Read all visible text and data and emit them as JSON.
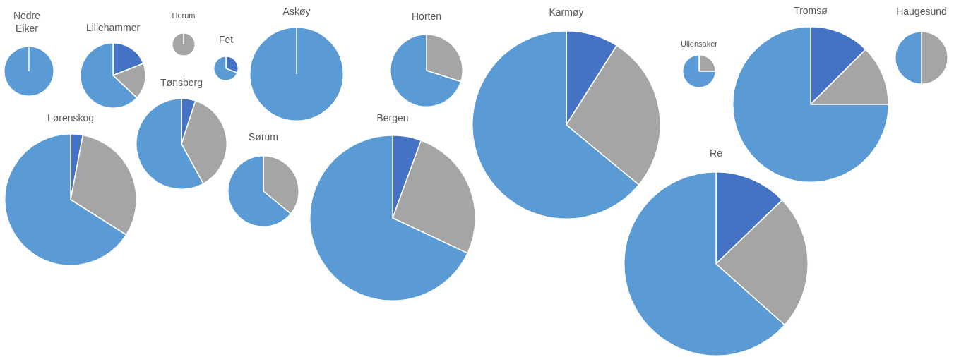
{
  "chart_data": [
    {
      "type": "pie",
      "title": "Nedre Eiker",
      "categories": [
        null,
        null,
        null
      ],
      "values": [
        0,
        0,
        100
      ],
      "colors": [
        "#4472c4",
        "#a5a5a5",
        "#5b9bd5"
      ]
    },
    {
      "type": "pie",
      "title": "Lillehammer",
      "categories": [
        null,
        null,
        null
      ],
      "values": [
        19,
        18,
        63
      ],
      "colors": [
        "#4472c4",
        "#a5a5a5",
        "#5b9bd5"
      ]
    },
    {
      "type": "pie",
      "title": "Hurum",
      "categories": [
        null,
        null,
        null
      ],
      "values": [
        0,
        100,
        0
      ],
      "colors": [
        "#4472c4",
        "#a5a5a5",
        "#5b9bd5"
      ]
    },
    {
      "type": "pie",
      "title": "Fet",
      "categories": [
        null,
        null,
        null
      ],
      "values": [
        31,
        0,
        69
      ],
      "colors": [
        "#4472c4",
        "#a5a5a5",
        "#5b9bd5"
      ]
    },
    {
      "type": "pie",
      "title": "Askøy",
      "categories": [
        null,
        null,
        null
      ],
      "values": [
        0,
        0,
        100
      ],
      "colors": [
        "#4472c4",
        "#a5a5a5",
        "#5b9bd5"
      ]
    },
    {
      "type": "pie",
      "title": "Horten",
      "categories": [
        null,
        null,
        null
      ],
      "values": [
        0,
        30,
        70
      ],
      "colors": [
        "#4472c4",
        "#a5a5a5",
        "#5b9bd5"
      ]
    },
    {
      "type": "pie",
      "title": "Karmøy",
      "categories": [
        null,
        null,
        null
      ],
      "values": [
        9,
        27,
        64
      ],
      "colors": [
        "#4472c4",
        "#a5a5a5",
        "#5b9bd5"
      ]
    },
    {
      "type": "pie",
      "title": "Ullensaker",
      "categories": [
        null,
        null,
        null
      ],
      "values": [
        0,
        25,
        75
      ],
      "colors": [
        "#4472c4",
        "#a5a5a5",
        "#5b9bd5"
      ]
    },
    {
      "type": "pie",
      "title": "Tromsø",
      "categories": [
        null,
        null,
        null
      ],
      "values": [
        12.5,
        12.5,
        75
      ],
      "colors": [
        "#4472c4",
        "#a5a5a5",
        "#5b9bd5"
      ]
    },
    {
      "type": "pie",
      "title": "Haugesund",
      "categories": [
        null,
        null,
        null
      ],
      "values": [
        0,
        50,
        50
      ],
      "colors": [
        "#4472c4",
        "#a5a5a5",
        "#5b9bd5"
      ]
    },
    {
      "type": "pie",
      "title": "Tønsberg",
      "categories": [
        null,
        null,
        null
      ],
      "values": [
        5,
        37,
        58
      ],
      "colors": [
        "#4472c4",
        "#a5a5a5",
        "#5b9bd5"
      ]
    },
    {
      "type": "pie",
      "title": "Lørenskog",
      "categories": [
        null,
        null,
        null
      ],
      "values": [
        3,
        31,
        66
      ],
      "colors": [
        "#4472c4",
        "#a5a5a5",
        "#5b9bd5"
      ]
    },
    {
      "type": "pie",
      "title": "Sørum",
      "categories": [
        null,
        null,
        null
      ],
      "values": [
        0,
        36,
        64
      ],
      "colors": [
        "#4472c4",
        "#a5a5a5",
        "#5b9bd5"
      ]
    },
    {
      "type": "pie",
      "title": "Bergen",
      "categories": [
        null,
        null,
        null
      ],
      "values": [
        5.6,
        26.4,
        68
      ],
      "colors": [
        "#4472c4",
        "#a5a5a5",
        "#5b9bd5"
      ]
    },
    {
      "type": "pie",
      "title": "Re",
      "categories": [
        null,
        null,
        null
      ],
      "values": [
        12.8,
        23.8,
        63.4
      ],
      "colors": [
        "#4472c4",
        "#a5a5a5",
        "#5b9bd5"
      ]
    }
  ]
}
